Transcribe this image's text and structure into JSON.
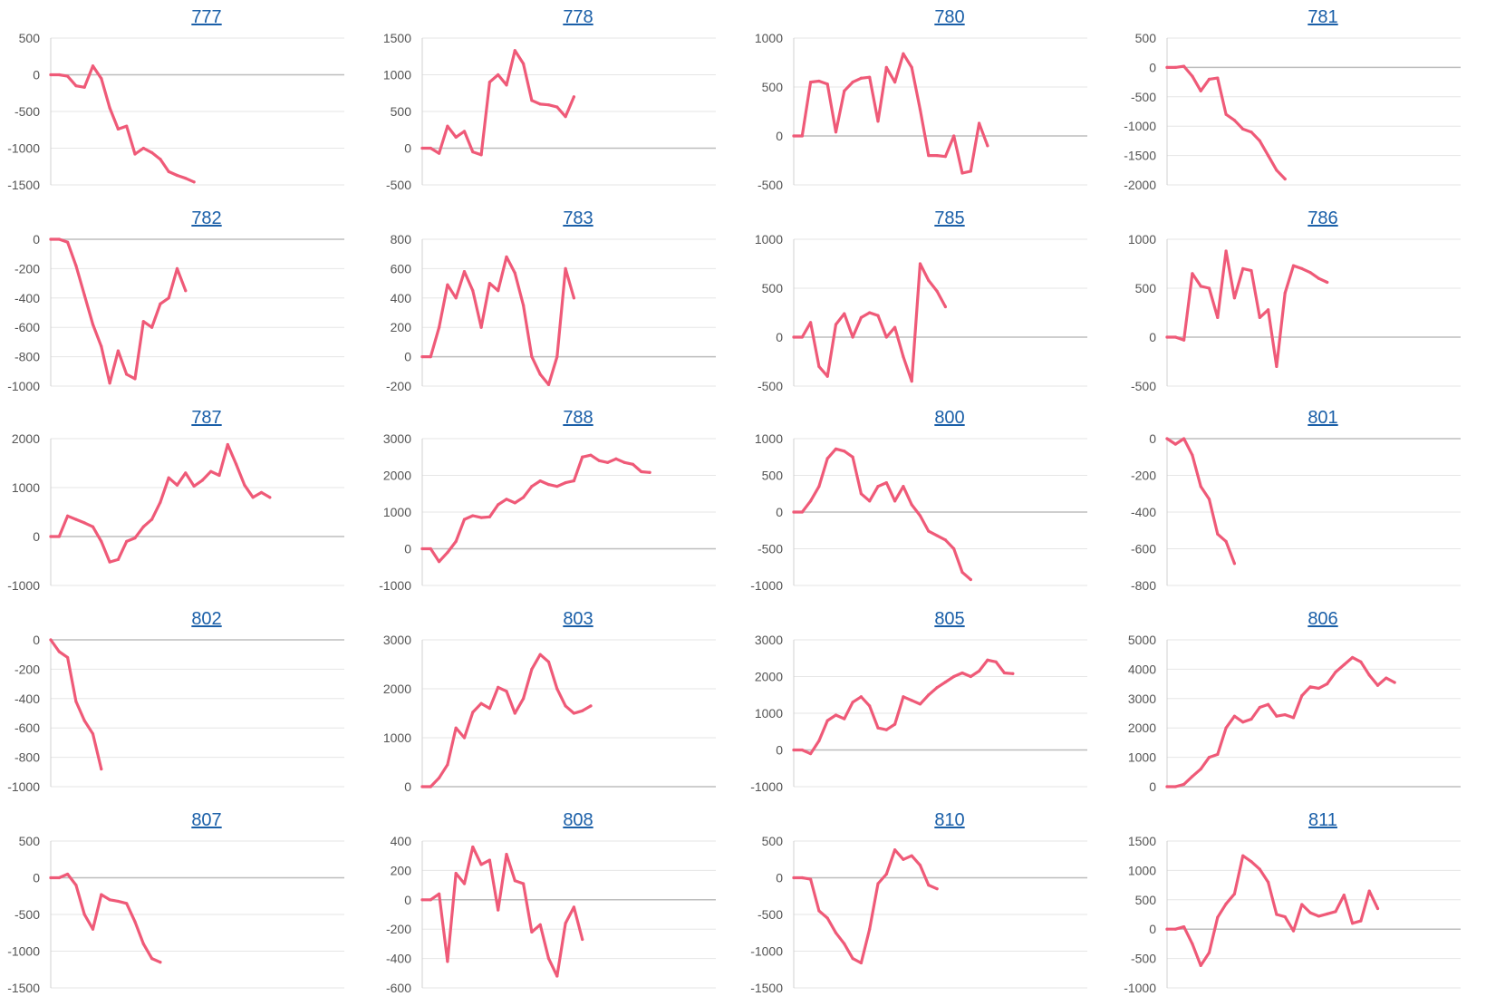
{
  "style": {
    "line_color": "#ef5a78",
    "title_color": "#1a5fa8",
    "grid_color": "#e6e6e6",
    "zero_line_color": "#bdbdbd"
  },
  "chart_data": [
    {
      "type": "line",
      "title": "777",
      "ylim": [
        -1500,
        500
      ],
      "yticks": [
        500,
        0,
        -500,
        -1000,
        -1500
      ],
      "values": [
        0,
        0,
        -20,
        -150,
        -170,
        120,
        -50,
        -450,
        -740,
        -700,
        -1080,
        -1000,
        -1060,
        -1150,
        -1320,
        -1370,
        -1410,
        -1460
      ]
    },
    {
      "type": "line",
      "title": "778",
      "ylim": [
        -500,
        1500
      ],
      "yticks": [
        1500,
        1000,
        500,
        0,
        -500
      ],
      "values": [
        0,
        0,
        -70,
        300,
        150,
        230,
        -50,
        -90,
        900,
        1000,
        860,
        1330,
        1150,
        650,
        600,
        590,
        560,
        430,
        700
      ]
    },
    {
      "type": "line",
      "title": "780",
      "ylim": [
        -500,
        1000
      ],
      "yticks": [
        1000,
        500,
        0,
        -500
      ],
      "values": [
        0,
        0,
        550,
        560,
        530,
        40,
        460,
        550,
        590,
        600,
        150,
        700,
        550,
        840,
        700,
        270,
        -200,
        -200,
        -210,
        0,
        -380,
        -360,
        130,
        -100
      ]
    },
    {
      "type": "line",
      "title": "781",
      "ylim": [
        -2000,
        500
      ],
      "yticks": [
        500,
        0,
        -500,
        -1000,
        -1500,
        -2000
      ],
      "values": [
        0,
        0,
        20,
        -150,
        -400,
        -200,
        -180,
        -800,
        -900,
        -1050,
        -1100,
        -1250,
        -1500,
        -1750,
        -1900
      ]
    },
    {
      "type": "line",
      "title": "782",
      "ylim": [
        -1000,
        0
      ],
      "yticks": [
        0,
        -200,
        -400,
        -600,
        -800,
        -1000
      ],
      "values": [
        0,
        0,
        -20,
        -180,
        -380,
        -580,
        -730,
        -980,
        -760,
        -920,
        -950,
        -560,
        -600,
        -440,
        -400,
        -200,
        -350
      ]
    },
    {
      "type": "line",
      "title": "783",
      "ylim": [
        -200,
        800
      ],
      "yticks": [
        800,
        600,
        400,
        200,
        0,
        -200
      ],
      "values": [
        0,
        0,
        200,
        490,
        400,
        580,
        450,
        200,
        500,
        450,
        680,
        570,
        350,
        0,
        -120,
        -190,
        0,
        600,
        400
      ]
    },
    {
      "type": "line",
      "title": "785",
      "ylim": [
        -500,
        1000
      ],
      "yticks": [
        1000,
        500,
        0,
        -500
      ],
      "values": [
        0,
        0,
        150,
        -300,
        -400,
        130,
        240,
        0,
        200,
        250,
        220,
        0,
        100,
        -200,
        -450,
        750,
        580,
        470,
        310
      ]
    },
    {
      "type": "line",
      "title": "786",
      "ylim": [
        -500,
        1000
      ],
      "yticks": [
        1000,
        500,
        0,
        -500
      ],
      "values": [
        0,
        0,
        -30,
        650,
        520,
        500,
        200,
        880,
        400,
        700,
        680,
        200,
        280,
        -300,
        450,
        730,
        700,
        660,
        600,
        560
      ]
    },
    {
      "type": "line",
      "title": "787",
      "ylim": [
        -1000,
        2000
      ],
      "yticks": [
        2000,
        1000,
        0,
        -1000
      ],
      "values": [
        0,
        0,
        420,
        350,
        280,
        200,
        -100,
        -520,
        -470,
        -100,
        -30,
        200,
        350,
        700,
        1200,
        1050,
        1300,
        1030,
        1150,
        1330,
        1250,
        1880,
        1480,
        1050,
        800,
        900,
        800
      ]
    },
    {
      "type": "line",
      "title": "788",
      "ylim": [
        -1000,
        3000
      ],
      "yticks": [
        3000,
        2000,
        1000,
        0,
        -1000
      ],
      "values": [
        0,
        0,
        -350,
        -100,
        200,
        800,
        900,
        850,
        870,
        1200,
        1350,
        1250,
        1400,
        1700,
        1850,
        1750,
        1700,
        1800,
        1850,
        2500,
        2550,
        2400,
        2350,
        2450,
        2350,
        2300,
        2100,
        2080
      ]
    },
    {
      "type": "line",
      "title": "800",
      "ylim": [
        -1000,
        1000
      ],
      "yticks": [
        1000,
        500,
        0,
        -500,
        -1000
      ],
      "values": [
        0,
        0,
        150,
        350,
        730,
        860,
        830,
        750,
        250,
        150,
        350,
        400,
        150,
        350,
        100,
        -50,
        -260,
        -320,
        -380,
        -500,
        -820,
        -920
      ]
    },
    {
      "type": "line",
      "title": "801",
      "ylim": [
        -800,
        0
      ],
      "yticks": [
        0,
        -200,
        -400,
        -600,
        -800
      ],
      "values": [
        0,
        -30,
        0,
        -90,
        -260,
        -330,
        -520,
        -560,
        -680
      ]
    },
    {
      "type": "line",
      "title": "802",
      "ylim": [
        -1000,
        0
      ],
      "yticks": [
        0,
        -200,
        -400,
        -600,
        -800,
        -1000
      ],
      "values": [
        0,
        -80,
        -120,
        -420,
        -550,
        -640,
        -880
      ]
    },
    {
      "type": "line",
      "title": "803",
      "ylim": [
        0,
        3000
      ],
      "yticks": [
        3000,
        2000,
        1000,
        0
      ],
      "values": [
        0,
        0,
        180,
        450,
        1200,
        1000,
        1520,
        1700,
        1600,
        2030,
        1950,
        1500,
        1800,
        2400,
        2700,
        2550,
        2000,
        1650,
        1500,
        1550,
        1650
      ]
    },
    {
      "type": "line",
      "title": "805",
      "ylim": [
        -1000,
        3000
      ],
      "yticks": [
        3000,
        2000,
        1000,
        0,
        -1000
      ],
      "values": [
        0,
        0,
        -100,
        250,
        800,
        950,
        850,
        1300,
        1450,
        1200,
        600,
        550,
        700,
        1450,
        1350,
        1250,
        1500,
        1700,
        1850,
        2000,
        2100,
        2000,
        2150,
        2450,
        2400,
        2100,
        2080
      ]
    },
    {
      "type": "line",
      "title": "806",
      "ylim": [
        0,
        5000
      ],
      "yticks": [
        5000,
        4000,
        3000,
        2000,
        1000,
        0
      ],
      "values": [
        0,
        0,
        80,
        350,
        600,
        1000,
        1100,
        2000,
        2400,
        2200,
        2300,
        2700,
        2800,
        2400,
        2450,
        2350,
        3100,
        3400,
        3350,
        3500,
        3900,
        4150,
        4400,
        4250,
        3800,
        3450,
        3700,
        3550
      ]
    },
    {
      "type": "line",
      "title": "807",
      "ylim": [
        -1500,
        500
      ],
      "yticks": [
        500,
        0,
        -500,
        -1000,
        -1500
      ],
      "values": [
        0,
        0,
        50,
        -100,
        -500,
        -700,
        -230,
        -300,
        -320,
        -350,
        -600,
        -900,
        -1100,
        -1150
      ]
    },
    {
      "type": "line",
      "title": "808",
      "ylim": [
        -600,
        400
      ],
      "yticks": [
        400,
        200,
        0,
        -200,
        -400,
        -600
      ],
      "values": [
        0,
        0,
        40,
        -420,
        180,
        110,
        360,
        240,
        270,
        -70,
        310,
        130,
        110,
        -220,
        -170,
        -400,
        -520,
        -160,
        -50,
        -270
      ]
    },
    {
      "type": "line",
      "title": "810",
      "ylim": [
        -1500,
        500
      ],
      "yticks": [
        500,
        0,
        -500,
        -1000,
        -1500
      ],
      "values": [
        0,
        0,
        -20,
        -450,
        -550,
        -750,
        -900,
        -1100,
        -1160,
        -700,
        -80,
        50,
        380,
        250,
        300,
        170,
        -100,
        -150
      ]
    },
    {
      "type": "line",
      "title": "811",
      "ylim": [
        -1000,
        1500
      ],
      "yticks": [
        1500,
        1000,
        500,
        0,
        -500,
        -1000
      ],
      "values": [
        0,
        0,
        40,
        -250,
        -620,
        -400,
        200,
        430,
        600,
        1250,
        1150,
        1020,
        800,
        250,
        210,
        -30,
        420,
        280,
        220,
        260,
        300,
        580,
        100,
        140,
        650,
        350
      ]
    }
  ]
}
